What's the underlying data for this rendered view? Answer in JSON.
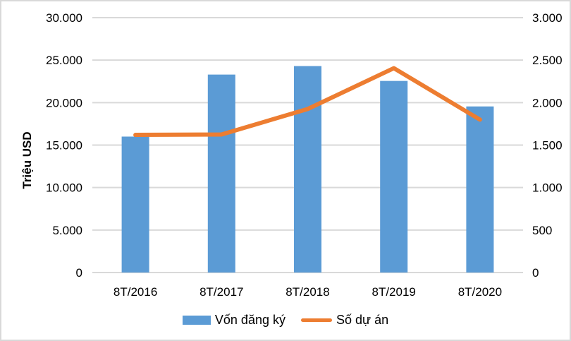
{
  "chart_data": {
    "type": "bar",
    "subtype": "bar-line-combo",
    "title": "",
    "categories": [
      "8T/2016",
      "8T/2017",
      "8T/2018",
      "8T/2019",
      "8T/2020"
    ],
    "series": [
      {
        "name": "Vốn đăng ký",
        "type": "bar",
        "axis": "left",
        "color": "#5B9BD5",
        "values": [
          16000,
          23300,
          24300,
          22550,
          19550
        ]
      },
      {
        "name": "Số dự án",
        "type": "line",
        "axis": "right",
        "color": "#ED7D31",
        "values": [
          1620,
          1625,
          1925,
          2405,
          1800
        ]
      }
    ],
    "left_axis": {
      "title": "Triệu USD",
      "min": 0,
      "max": 30000,
      "step": 5000,
      "tick_labels": [
        "0",
        "5.000",
        "10.000",
        "15.000",
        "20.000",
        "25.000",
        "30.000"
      ]
    },
    "right_axis": {
      "title": "",
      "min": 0,
      "max": 3000,
      "step": 500,
      "tick_labels": [
        "0",
        "500",
        "1.000",
        "1.500",
        "2.000",
        "2.500",
        "3.000"
      ]
    },
    "grid": true,
    "legend_position": "bottom"
  },
  "colors": {
    "bar": "#5B9BD5",
    "line": "#ED7D31",
    "grid": "#D9D9D9",
    "axis_text": "#000000",
    "border": "#D9D9D9",
    "background": "#FFFFFF"
  }
}
